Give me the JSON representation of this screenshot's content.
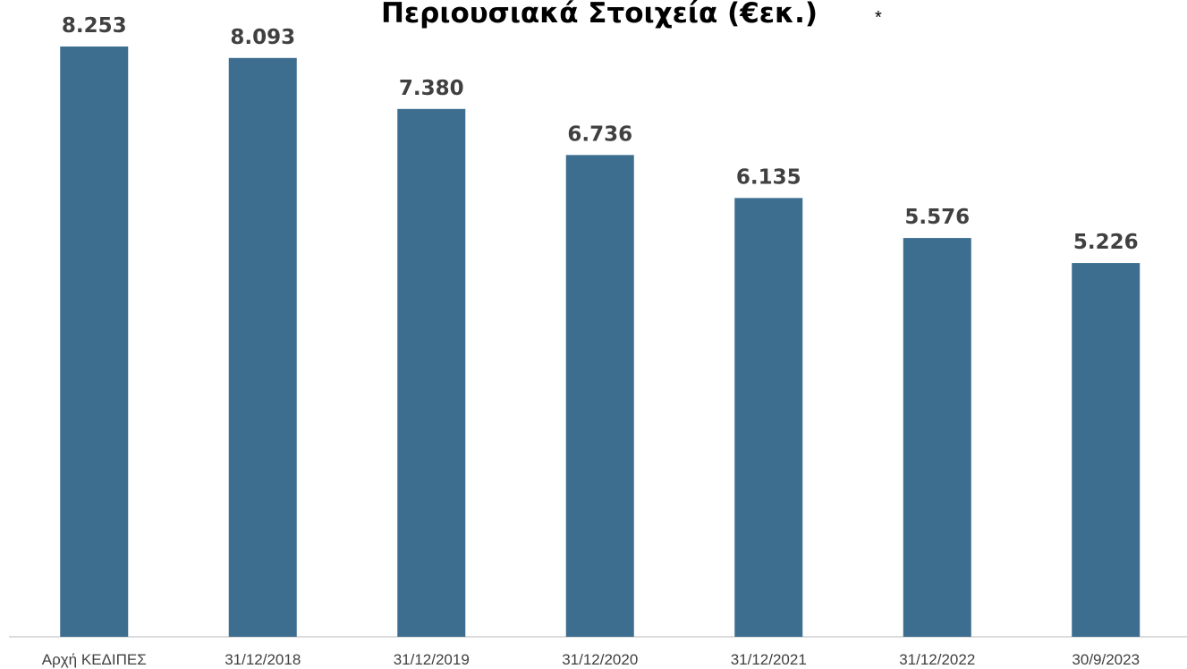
{
  "chart_data": {
    "type": "bar",
    "title": "Περιουσιακά Στοιχεία (€εκ.)",
    "annotation": "*",
    "categories": [
      "Αρχή ΚΕΔΙΠΕΣ",
      "31/12/2018",
      "31/12/2019",
      "31/12/2020",
      "31/12/2021",
      "31/12/2022",
      "30/9/2023"
    ],
    "values": [
      8253,
      8093,
      7380,
      6736,
      6135,
      5576,
      5226
    ],
    "value_labels": [
      "8.253",
      "8.093",
      "7.380",
      "6.736",
      "6.135",
      "5.576",
      "5.226"
    ],
    "color": "#3d6e8f"
  }
}
